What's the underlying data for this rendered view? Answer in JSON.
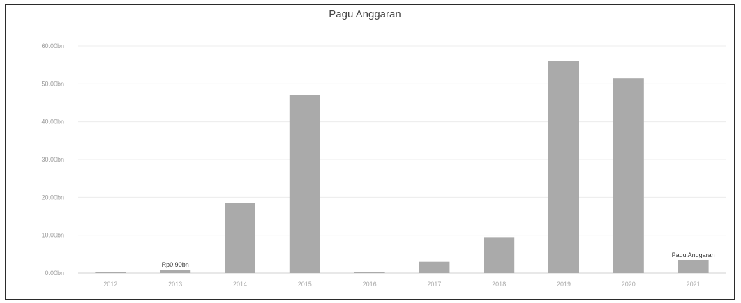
{
  "chart_data": {
    "type": "bar",
    "title": "Pagu Anggaran",
    "xlabel": "",
    "ylabel": "",
    "categories": [
      "2012",
      "2013",
      "2014",
      "2015",
      "2016",
      "2017",
      "2018",
      "2019",
      "2020",
      "2021"
    ],
    "values": [
      0.2,
      0.9,
      18.5,
      47.0,
      0.3,
      3.0,
      9.5,
      56.0,
      51.5,
      3.5
    ],
    "y_ticks": [
      "0.00bn",
      "10.00bn",
      "20.00bn",
      "30.00bn",
      "40.00bn",
      "50.00bn",
      "60.00bn"
    ],
    "ylim": [
      0,
      60
    ],
    "grid": true,
    "bar_color": "#aaaaaa",
    "data_labels": [
      {
        "index": 1,
        "text": "Rp0.90bn"
      },
      {
        "index": 9,
        "text": "Pagu Anggaran"
      }
    ]
  }
}
